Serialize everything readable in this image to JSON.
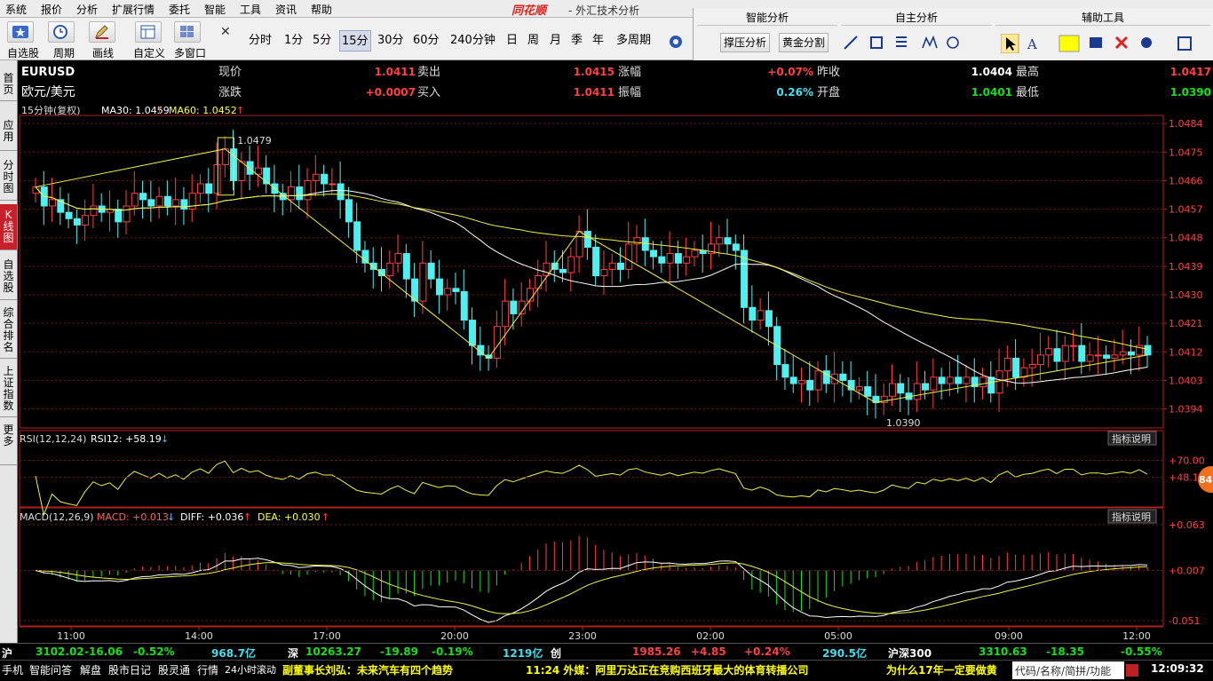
{
  "menu": [
    "系统",
    "报价",
    "分析",
    "扩展行情",
    "委托",
    "智能",
    "工具",
    "资讯",
    "帮助"
  ],
  "brand": "同花顺",
  "brand_sub": "- 外汇技术分析",
  "toolbar": {
    "buttons": [
      {
        "label": "自选股",
        "icon": "star-icon"
      },
      {
        "label": "周期",
        "icon": "clock-icon"
      },
      {
        "label": "画线",
        "icon": "pencil-icon"
      },
      {
        "label": "自定义",
        "icon": "grid-icon"
      },
      {
        "label": "多窗口",
        "icon": "windows-icon"
      }
    ],
    "periods": [
      "分时",
      "1分",
      "5分",
      "15分",
      "30分",
      "60分",
      "240分钟",
      "日",
      "周",
      "月",
      "季",
      "年",
      "多周期"
    ],
    "active_period": "15分"
  },
  "right_panel": {
    "headers": [
      "智能分析",
      "自主分析",
      "辅助工具"
    ],
    "smart_buttons": [
      "撑压分析",
      "黄金分割"
    ]
  },
  "sidebar": [
    {
      "label": "首页"
    },
    {
      "label": "应用"
    },
    {
      "label": "分时图"
    },
    {
      "label": "K线图"
    },
    {
      "label": "自选股"
    },
    {
      "label": "综合排名"
    },
    {
      "label": "上证指数"
    },
    {
      "label": "更多"
    }
  ],
  "quote": {
    "symbol": "EURUSD",
    "name": "欧元/美元",
    "r1": [
      {
        "label": "现价",
        "value": "1.0411",
        "color": "#ff4040"
      },
      {
        "label": "卖出",
        "value": "1.0415",
        "color": "#ff4040"
      },
      {
        "label": "涨幅",
        "value": "+0.07%",
        "color": "#ff4040"
      },
      {
        "label": "昨收",
        "value": "1.0404",
        "color": "#ffffff"
      },
      {
        "label": "最高",
        "value": "1.0417",
        "color": "#ff4040"
      }
    ],
    "r2": [
      {
        "label": "涨跌",
        "value": "+0.0007",
        "color": "#ff4040"
      },
      {
        "label": "买入",
        "value": "1.0411",
        "color": "#ff4040"
      },
      {
        "label": "振幅",
        "value": "0.26%",
        "color": "#40e0f0"
      },
      {
        "label": "开盘",
        "value": "1.0401",
        "color": "#18e018"
      },
      {
        "label": "最低",
        "value": "1.0390",
        "color": "#18e018"
      }
    ]
  },
  "main_legend": {
    "period": "15分钟(复权)",
    "ma30": "MA30: 1.0459",
    "ma60": "MA60: 1.0452"
  },
  "rsi_legend": {
    "name": "RSI(12,12,24)",
    "value": "RSI12: +58.19"
  },
  "macd_legend": {
    "name": "MACD(12,26,9)",
    "macd": "MACD: +0.013",
    "diff": "DIFF: +0.036",
    "dea": "DEA: +0.030"
  },
  "indicator_btn": "指标说明",
  "bubble": "84",
  "chart_data": {
    "type": "candlestick",
    "yticks": [
      "1.0484",
      "1.0475",
      "1.0466",
      "1.0457",
      "1.0448",
      "1.0439",
      "1.0430",
      "1.0421",
      "1.0412",
      "1.0403",
      "1.0394"
    ],
    "ylim": [
      1.0388,
      1.0486
    ],
    "xticks": [
      "11:00",
      "14:00",
      "17:00",
      "20:00",
      "23:00",
      "02:00",
      "05:00",
      "09:00",
      "12:00"
    ],
    "annotations": {
      "high": "1.0479",
      "low": "1.0390"
    },
    "rsi_ticks": [
      "+70.00",
      "+48.14"
    ],
    "macd_ticks": [
      "+0.063",
      "+0.007",
      "-0.051"
    ],
    "closes": [
      1.0464,
      1.0458,
      1.046,
      1.0456,
      1.0454,
      1.0452,
      1.0455,
      1.0458,
      1.0456,
      1.0457,
      1.0453,
      1.0458,
      1.0462,
      1.046,
      1.0458,
      1.0461,
      1.0458,
      1.046,
      1.0457,
      1.0462,
      1.0465,
      1.0462,
      1.0471,
      1.0476,
      1.0466,
      1.0472,
      1.0468,
      1.047,
      1.0465,
      1.0462,
      1.046,
      1.0464,
      1.046,
      1.0466,
      1.0468,
      1.0465,
      1.0465,
      1.046,
      1.0453,
      1.0444,
      1.044,
      1.0438,
      1.0436,
      1.044,
      1.0443,
      1.0435,
      1.0428,
      1.044,
      1.0435,
      1.043,
      1.0432,
      1.0431,
      1.0422,
      1.0414,
      1.0411,
      1.041,
      1.042,
      1.0428,
      1.0424,
      1.0428,
      1.0432,
      1.0436,
      1.044,
      1.0438,
      1.0437,
      1.0442,
      1.045,
      1.0445,
      1.0436,
      1.0438,
      1.044,
      1.0438,
      1.0446,
      1.0448,
      1.0444,
      1.0442,
      1.044,
      1.0443,
      1.044,
      1.0442,
      1.0444,
      1.0443,
      1.0446,
      1.0448,
      1.0446,
      1.0444,
      1.0426,
      1.0422,
      1.0425,
      1.042,
      1.0408,
      1.0404,
      1.0402,
      1.0403,
      1.04,
      1.0406,
      1.0402,
      1.0405,
      1.0403,
      1.04,
      1.0401,
      1.0398,
      1.0396,
      1.0398,
      1.0402,
      1.0399,
      1.0397,
      1.0402,
      1.04,
      1.0404,
      1.0402,
      1.0404,
      1.0402,
      1.0404,
      1.0401,
      1.0404,
      1.0399,
      1.0406,
      1.041,
      1.0404,
      1.0407,
      1.0408,
      1.0411,
      1.0413,
      1.0409,
      1.0414,
      1.0414,
      1.0409,
      1.0411,
      1.0411,
      1.041,
      1.0411,
      1.0412,
      1.0411,
      1.0414,
      1.0411
    ]
  },
  "bottom_row1": [
    {
      "t": "沪",
      "c": "wht"
    },
    {
      "t": "3102.02",
      "c": "grn"
    },
    {
      "t": "-16.06",
      "c": "grn"
    },
    {
      "t": "-0.52%",
      "c": "grn"
    },
    {
      "t": "968.7亿",
      "c": "cya"
    },
    {
      "t": "深",
      "c": "wht"
    },
    {
      "t": "10263.27",
      "c": "grn"
    },
    {
      "t": "-19.89",
      "c": "grn"
    },
    {
      "t": "-0.19%",
      "c": "grn"
    },
    {
      "t": "1219亿",
      "c": "cya"
    },
    {
      "t": "创",
      "c": "wht"
    },
    {
      "t": "1985.26",
      "c": "red"
    },
    {
      "t": "+4.85",
      "c": "red"
    },
    {
      "t": "+0.24%",
      "c": "red"
    },
    {
      "t": "290.5亿",
      "c": "cya"
    },
    {
      "t": "沪深300",
      "c": "wht"
    },
    {
      "t": "3310.63",
      "c": "grn"
    },
    {
      "t": "-18.35",
      "c": "grn"
    },
    {
      "t": "-0.55%",
      "c": "grn"
    }
  ],
  "bottom_row2": {
    "tabs": [
      "手机",
      "智能问答",
      "解盘",
      "股市日记",
      "股灵通",
      "行情",
      "24小时滚动"
    ],
    "news": [
      "副董事长刘弘：未来汽车有四个趋势",
      "11:24 外媒：阿里万达正在竞购西班牙最大的体育转播公司",
      "为什么17年一定要做黄"
    ],
    "search": "代码/名称/简拼/功能",
    "clock": "12:09:32"
  }
}
